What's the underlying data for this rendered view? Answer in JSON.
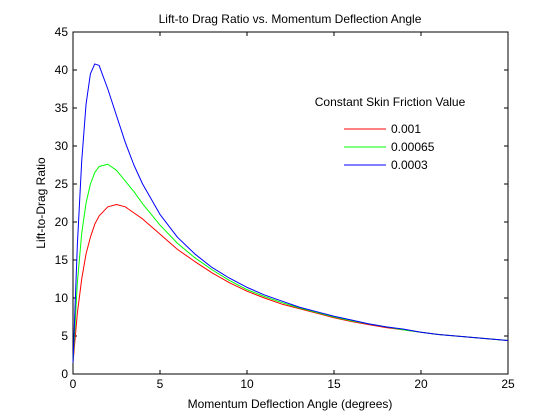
{
  "chart_data": {
    "type": "line",
    "title": "Lift-to Drag Ratio vs. Momentum Deflection Angle",
    "xlabel": "Momentum Deflection Angle (degrees)",
    "ylabel": "Lift-to-Drag Ratio",
    "xlim": [
      0,
      25
    ],
    "ylim": [
      0,
      45
    ],
    "xticks": [
      "0",
      "5",
      "10",
      "15",
      "20",
      "25"
    ],
    "yticks": [
      "0",
      "5",
      "10",
      "15",
      "20",
      "25",
      "30",
      "35",
      "40",
      "45"
    ],
    "grid": false,
    "legend_title": "Constant Skin Friction Value",
    "legend_position": "top-right",
    "series": [
      {
        "name": "0.001",
        "color": "#ff0000",
        "x": [
          0,
          0.25,
          0.5,
          0.75,
          1,
          1.25,
          1.5,
          2,
          2.5,
          3,
          3.5,
          4,
          5,
          6,
          7,
          8,
          9,
          10,
          11,
          12,
          13,
          14,
          15,
          16,
          17,
          18,
          19,
          20,
          21,
          22,
          23,
          24,
          25
        ],
        "y": [
          1.5,
          8.0,
          12.5,
          15.8,
          18.0,
          19.7,
          20.8,
          22.0,
          22.3,
          22.0,
          21.2,
          20.4,
          18.4,
          16.4,
          14.8,
          13.3,
          12.0,
          10.9,
          10.0,
          9.2,
          8.6,
          8.0,
          7.4,
          6.9,
          6.5,
          6.1,
          5.8,
          5.5,
          5.2,
          5.0,
          4.8,
          4.6,
          4.4
        ]
      },
      {
        "name": "0.00065",
        "color": "#00ff00",
        "x": [
          0,
          0.25,
          0.5,
          0.75,
          1,
          1.25,
          1.5,
          2,
          2.5,
          3,
          3.5,
          4,
          5,
          6,
          7,
          8,
          9,
          10,
          11,
          12,
          13,
          14,
          15,
          16,
          17,
          18,
          19,
          20,
          21,
          22,
          23,
          24,
          25
        ],
        "y": [
          1.5,
          12.0,
          18.5,
          22.5,
          25.0,
          26.5,
          27.3,
          27.6,
          26.8,
          25.4,
          24.0,
          22.4,
          19.6,
          17.2,
          15.3,
          13.7,
          12.3,
          11.1,
          10.2,
          9.4,
          8.7,
          8.1,
          7.5,
          7.0,
          6.6,
          6.2,
          5.8,
          5.5,
          5.2,
          5.0,
          4.8,
          4.6,
          4.4
        ]
      },
      {
        "name": "0.0003",
        "color": "#0000ff",
        "x": [
          0,
          0.25,
          0.5,
          0.75,
          1,
          1.25,
          1.5,
          2,
          2.5,
          3,
          3.5,
          4,
          5,
          6,
          7,
          8,
          9,
          10,
          11,
          12,
          13,
          14,
          15,
          16,
          17,
          18,
          19,
          20,
          21,
          22,
          23,
          24,
          25
        ],
        "y": [
          1.5,
          17.0,
          28.0,
          35.5,
          39.5,
          40.8,
          40.6,
          37.5,
          34.0,
          30.5,
          27.5,
          25.0,
          21.0,
          18.0,
          15.8,
          14.0,
          12.6,
          11.4,
          10.4,
          9.6,
          8.8,
          8.2,
          7.6,
          7.1,
          6.6,
          6.2,
          5.9,
          5.5,
          5.2,
          5.0,
          4.8,
          4.6,
          4.4
        ]
      }
    ]
  }
}
